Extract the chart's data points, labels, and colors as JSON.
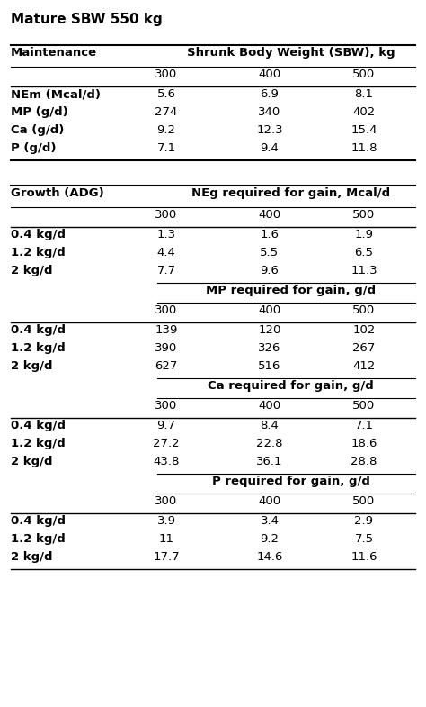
{
  "title": "Mature SBW 550 kg",
  "background_color": "#ffffff",
  "figsize": [
    4.74,
    7.85
  ],
  "dpi": 100,
  "maintenance_header": [
    "Maintenance",
    "Shrunk Body Weight (SBW), kg"
  ],
  "maintenance_subheader": [
    "",
    "300",
    "400",
    "500"
  ],
  "maintenance_rows": [
    [
      "NEm (Mcal/d)",
      "5.6",
      "6.9",
      "8.1"
    ],
    [
      "MP (g/d)",
      "274",
      "340",
      "402"
    ],
    [
      "Ca (g/d)",
      "9.2",
      "12.3",
      "15.4"
    ],
    [
      "P (g/d)",
      "7.1",
      "9.4",
      "11.8"
    ]
  ],
  "growth_header": [
    "Growth (ADG)",
    "NEg required for gain, Mcal/d"
  ],
  "growth_neg_rows": [
    [
      "0.4 kg/d",
      "1.3",
      "1.6",
      "1.9"
    ],
    [
      "1.2 kg/d",
      "4.4",
      "5.5",
      "6.5"
    ],
    [
      "2 kg/d",
      "7.7",
      "9.6",
      "11.3"
    ]
  ],
  "growth_mp_header": "MP required for gain, g/d",
  "growth_mp_rows": [
    [
      "0.4 kg/d",
      "139",
      "120",
      "102"
    ],
    [
      "1.2 kg/d",
      "390",
      "326",
      "267"
    ],
    [
      "2 kg/d",
      "627",
      "516",
      "412"
    ]
  ],
  "growth_ca_header": "Ca required for gain, g/d",
  "growth_ca_rows": [
    [
      "0.4 kg/d",
      "9.7",
      "8.4",
      "7.1"
    ],
    [
      "1.2 kg/d",
      "27.2",
      "22.8",
      "18.6"
    ],
    [
      "2 kg/d",
      "43.8",
      "36.1",
      "28.8"
    ]
  ],
  "growth_p_header": "P required for gain, g/d",
  "growth_p_rows": [
    [
      "0.4 kg/d",
      "3.9",
      "3.4",
      "2.9"
    ],
    [
      "1.2 kg/d",
      "11",
      "9.2",
      "7.5"
    ],
    [
      "2 kg/d",
      "17.7",
      "14.6",
      "11.6"
    ]
  ]
}
